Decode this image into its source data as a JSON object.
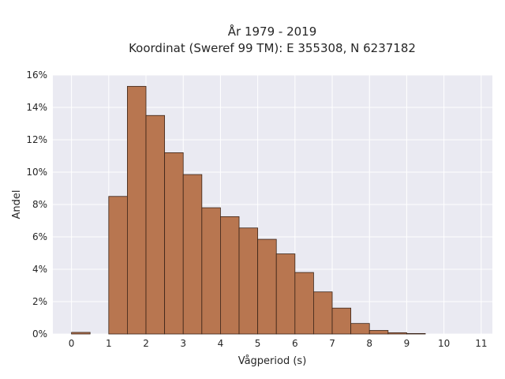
{
  "chart_data": {
    "type": "bar",
    "title_line1": "År 1979 - 2019",
    "title_line2": "Koordinat (Sweref 99 TM): E 355308, N 6237182",
    "xlabel": "Vågperiod (s)",
    "ylabel": "Andel",
    "bin_width": 0.5,
    "bin_starts": [
      0,
      0.5,
      1,
      1.5,
      2,
      2.5,
      3,
      3.5,
      4,
      4.5,
      5,
      5.5,
      6,
      6.5,
      7,
      7.5,
      8,
      8.5,
      9,
      9.5,
      10,
      10.5
    ],
    "values": [
      0.1,
      0,
      8.5,
      15.3,
      13.5,
      11.2,
      9.85,
      7.8,
      7.25,
      6.55,
      5.85,
      4.95,
      3.8,
      2.6,
      1.6,
      0.65,
      0.22,
      0.08,
      0.03,
      0,
      0,
      0
    ],
    "xlim": [
      -0.5,
      11.3
    ],
    "ylim": [
      0,
      16
    ],
    "x_ticks": [
      "0",
      "1",
      "2",
      "3",
      "4",
      "5",
      "6",
      "7",
      "8",
      "9",
      "10",
      "11"
    ],
    "y_ticks": [
      "0%",
      "2%",
      "4%",
      "6%",
      "8%",
      "10%",
      "12%",
      "14%",
      "16%"
    ],
    "grid": true,
    "bar_color": "#b87650",
    "bar_edge_color": "#3a2418",
    "background_color": "#eaeaf2",
    "grid_color": "#ffffff"
  }
}
